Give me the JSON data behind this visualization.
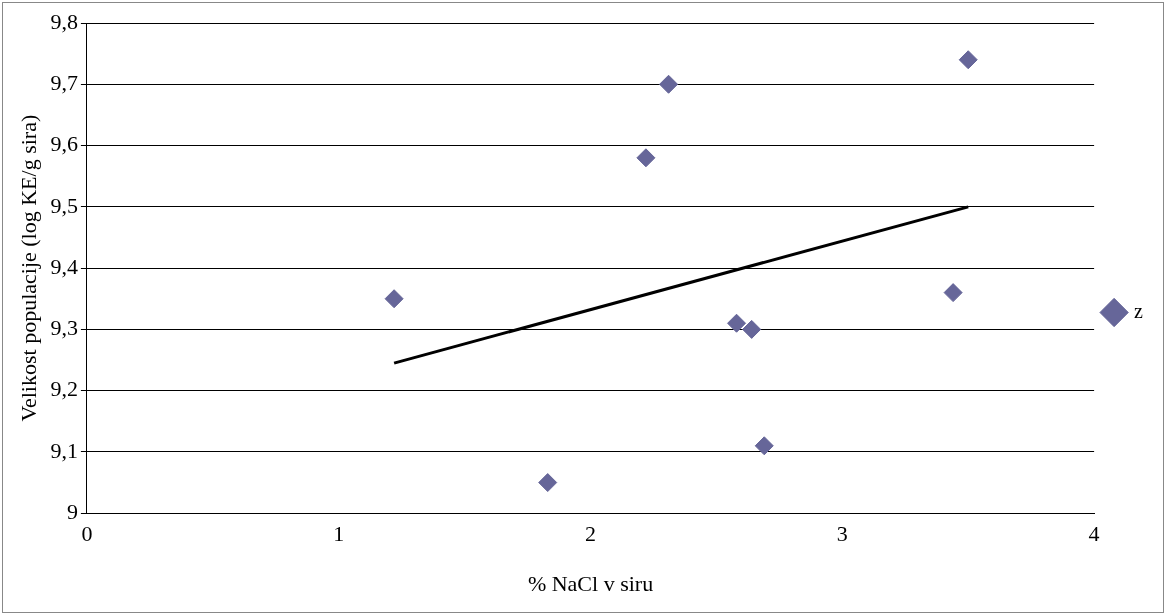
{
  "chart_data": {
    "type": "scatter",
    "xlabel": "% NaCl v siru",
    "ylabel": "Velikost populacije (log KE/g sira)",
    "xlim": [
      0,
      4
    ],
    "xticks": [
      0,
      1,
      2,
      3,
      4
    ],
    "ylim": [
      9,
      9.8
    ],
    "yticks": [
      9,
      {
        "value": 9.1,
        "label": "9,1"
      },
      {
        "value": 9.2,
        "label": "9,2"
      },
      {
        "value": 9.3,
        "label": "9,3"
      },
      {
        "value": 9.4,
        "label": "9,4"
      },
      {
        "value": 9.5,
        "label": "9,5"
      },
      {
        "value": 9.6,
        "label": "9,6"
      },
      {
        "value": 9.7,
        "label": "9,7"
      },
      {
        "value": 9.8,
        "label": "9,8"
      }
    ],
    "grid": "y",
    "legend": "right",
    "marker": "diamond",
    "series": [
      {
        "name": "z",
        "color": "#666699",
        "x": [
          1.22,
          1.83,
          2.22,
          2.31,
          2.58,
          2.64,
          2.69,
          3.44,
          3.5
        ],
        "values": [
          9.35,
          9.05,
          9.58,
          9.7,
          9.31,
          9.3,
          9.11,
          9.36,
          9.74
        ]
      },
      {
        "type": "line",
        "color": "#000000",
        "x": [
          1.22,
          3.5
        ],
        "values": [
          9.245,
          9.5
        ],
        "marker": "none"
      }
    ]
  }
}
